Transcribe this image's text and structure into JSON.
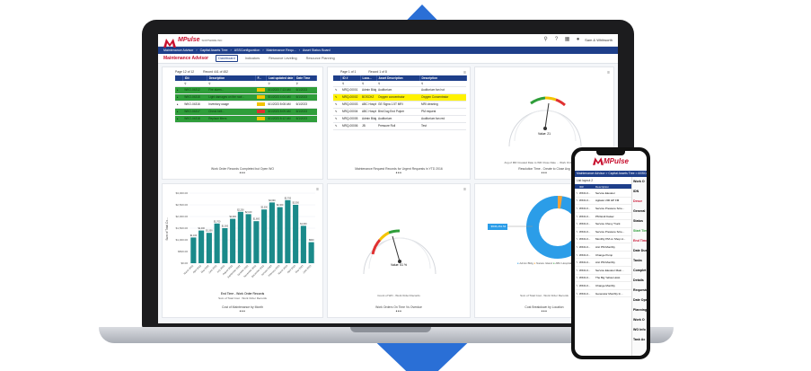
{
  "colors": {
    "accent_blue": "#2a6fd6",
    "nav_blue": "#1e3f8a",
    "brand_red": "#c8102e",
    "row_green": "#2f9e3a",
    "row_yellow": "#fff200",
    "bar_teal": "#1a8a8a",
    "donut_blue": "#2b9de8"
  },
  "app": {
    "logo": "MPulse",
    "logo_sub": "SOFTWARE INC",
    "user": "Sam & Whitworth",
    "icons": [
      "search-icon",
      "help-icon",
      "grid-icon",
      "user-icon"
    ]
  },
  "breadcrumb": [
    "Maintenance Advisor",
    "Capital Assets Tree",
    "ASSConfiguration",
    "Maintenance Requ...",
    "Asset Status Board"
  ],
  "subheader": {
    "title": "Maintenance Advisor",
    "tabs": [
      "Dashboard",
      "Indicators",
      "Resource Leveling",
      "Resource Planning"
    ]
  },
  "work_orders_panel": {
    "page_info": "Page 12 of 12",
    "record_info": "Record 441 of 452",
    "columns": [
      "",
      "ID#",
      "Description",
      "F...",
      "Last updated date",
      "Date Time"
    ],
    "rows": [
      {
        "id": "WKO-04312",
        "desc": "Fire alarm...",
        "flag": "yellow",
        "date": "6/1/2023 7:13 AM",
        "time": "6/1/2023",
        "style": "green"
      },
      {
        "id": "WKO-04315",
        "desc": "Light damages on the roof...",
        "flag": "yellow",
        "date": "6/1/2023 4:04 AM",
        "time": "6/1/2023",
        "style": "green"
      },
      {
        "id": "WKO-04316",
        "desc": "Inventory usage",
        "flag": "yellow",
        "date": "6/1/2023 8:08 AM",
        "time": "6/1/2023",
        "style": "white"
      },
      {
        "id": "WKO-04317",
        "desc": "Check belt...",
        "flag": "red",
        "date": "6/1/2023 8:09 AM",
        "time": "6/1/2023",
        "style": "green"
      },
      {
        "id": "WKO-04318",
        "desc": "Replace filters",
        "flag": "yellow",
        "date": "6/1/2023 8:12 AM",
        "time": "6/1/2023",
        "style": "green"
      }
    ],
    "caption": "Work Order Records Completed but Open WO"
  },
  "requests_panel": {
    "page_info": "Page 1 of 1",
    "record_info": "Record 1 of 8",
    "columns": [
      "",
      "ID #",
      "Loca...",
      "Asset Description",
      "Description"
    ],
    "rows": [
      {
        "id": "MRQ-00001",
        "loc": "Admin Bldg",
        "asset": "Auditorium",
        "desc": "Auditorium fan hot",
        "style": "white"
      },
      {
        "id": "MRQ-00002",
        "loc": "BOSCHZ",
        "asset": "Oxygen concentrator",
        "desc": "Oxygen Concentrator",
        "style": "yellow"
      },
      {
        "id": "MRQ-00003",
        "loc": "ABC Hospital",
        "asset": "GE Signa 1.5T MRI",
        "desc": "MRI cleaning",
        "style": "white"
      },
      {
        "id": "MRQ-00004",
        "loc": "ABC Hospital",
        "asset": "Bird Dog End Pulper",
        "desc": "PM request",
        "style": "white"
      },
      {
        "id": "MRQ-00005",
        "loc": "Admin Bldg",
        "asset": "Auditorium",
        "desc": "Auditorium fan red",
        "style": "white"
      },
      {
        "id": "MRQ-00006",
        "loc": "JB",
        "asset": "Pressure Roll",
        "desc": "Test",
        "style": "white"
      }
    ],
    "caption": "Maintenance Request Records for Urgent Requests in YTD 2016"
  },
  "gauge_resolution": {
    "value_label": "Value: 21",
    "caption_top": "Avg of MR Created Date to WR Close Date ... Work Order Request",
    "caption": "Resolution Time - Create to Close Avg"
  },
  "cost_chart": {
    "title": "Cost of Maintenance by Month",
    "xlabel": "End Time - Work Order Records",
    "ylabel": "Sum of Total Co...",
    "legend": [
      "Sum of Total Cost",
      "Work Order Records"
    ],
    "categories": [
      "March 2022",
      "April 2022",
      "May 2022",
      "June 2022",
      "July 2022",
      "August 2022",
      "September 2022",
      "October 2022",
      "November 2022",
      "December 2022",
      "January 2023",
      "February 2023",
      "March 2023",
      "April 2023",
      "May 2023",
      "June 2023"
    ],
    "values": [
      1100,
      1400,
      1300,
      1700,
      1500,
      1900,
      2200,
      2100,
      1800,
      2300,
      2600,
      2400,
      2700,
      2500,
      1600,
      900
    ],
    "data_labels": [
      "$1,100",
      "$1,400",
      "$1,300",
      "$1,700",
      "$1,500",
      "$1,900",
      "$2,200",
      "$2,100",
      "$1,800",
      "$2,300",
      "$2,600",
      "$2,400",
      "$2,700",
      "$2,500",
      "$1,600",
      "$900"
    ],
    "ticks": [
      "$3,000.00",
      "$2,500.00",
      "$2,000.00",
      "$1,500.00",
      "$1,000.00",
      "$500.00",
      "$0.00"
    ]
  },
  "chart_data": {
    "type": "bar",
    "categories": [
      "March 2022",
      "April 2022",
      "May 2022",
      "June 2022",
      "July 2022",
      "August 2022",
      "September 2022",
      "October 2022",
      "November 2022",
      "December 2022",
      "January 2023",
      "February 2023",
      "March 2023",
      "April 2023",
      "May 2023",
      "June 2023"
    ],
    "values": [
      1100,
      1400,
      1300,
      1700,
      1500,
      1900,
      2200,
      2100,
      1800,
      2300,
      2600,
      2400,
      2700,
      2500,
      1600,
      900
    ],
    "title": "Cost of Maintenance by Month",
    "xlabel": "End Time - Work Order Records",
    "ylabel": "Sum of Total Co...",
    "ylim": [
      0,
      3000
    ]
  },
  "gauge_ontime": {
    "value_label": "Value: 51 %",
    "caption_top": "Count of WO - Work Order Records",
    "caption": "Work Orders On Time Vs Overdue"
  },
  "donut": {
    "callout": "$536,261.54",
    "legend": [
      "Admin Bldg",
      "Nature Island",
      "ABC Hospital"
    ],
    "caption_top": "Sum of Total Cost - Work Order Records",
    "caption": "Cost Breakdown by Location"
  },
  "phone": {
    "breadcrumb": "Maintenance Advisor > Capital Assets Tree > ASSConfig",
    "layout": "List layout 2",
    "columns": [
      "ID#",
      "Description"
    ],
    "rows": [
      {
        "id": "WKO-0...",
        "desc": "Service Elevator"
      },
      {
        "id": "WKO-0...",
        "desc": "Agitator 200 HP FM"
      },
      {
        "id": "WKO-0...",
        "desc": "Service Pressure Scre..."
      },
      {
        "id": "WKO-0...",
        "desc": "PM Endi Kaiser"
      },
      {
        "id": "WKO-0...",
        "desc": "Service Chevy Truck"
      },
      {
        "id": "WKO-0...",
        "desc": "Service Pressure Scre..."
      },
      {
        "id": "WKO-0...",
        "desc": "Monthly PM on Shop H..."
      },
      {
        "id": "WKO-0...",
        "desc": "Aric PM Monthly"
      },
      {
        "id": "WKO-0...",
        "desc": "Change Pump"
      },
      {
        "id": "WKO-0...",
        "desc": "Aric PM Monthly"
      },
      {
        "id": "WKO-0...",
        "desc": "Service Elevator Main..."
      },
      {
        "id": "WKO-0...",
        "desc": "The Big Yellow Hoist"
      },
      {
        "id": "WKO-0...",
        "desc": "Change Monthly"
      },
      {
        "id": "WKO-0...",
        "desc": "Generator Monthly In..."
      }
    ],
    "detail": [
      "Work O",
      "IDN",
      "Descr",
      "General",
      "Status",
      "Start Tim",
      "End Time",
      "Date Due",
      "Tasks",
      "Complet",
      "Details",
      "Requeste",
      "Date Ope",
      "Planning",
      "Work O",
      "WO Info",
      "Task Ac"
    ]
  }
}
